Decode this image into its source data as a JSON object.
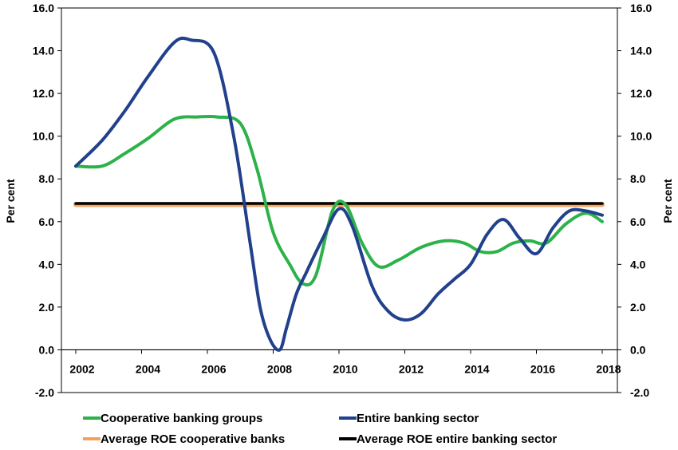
{
  "chart_data": {
    "type": "line",
    "ylabel_left": "Per cent",
    "ylabel_right": "Per cent",
    "ylim": [
      -2,
      16
    ],
    "xlim": [
      2002,
      2018
    ],
    "yticks": [
      "-2.0",
      "0.0",
      "2.0",
      "4.0",
      "6.0",
      "8.0",
      "10.0",
      "12.0",
      "14.0",
      "16.0"
    ],
    "xticks": [
      "2002",
      "2004",
      "2006",
      "2008",
      "2010",
      "2012",
      "2014",
      "2016",
      "2018"
    ],
    "grid": false,
    "legend_position": "bottom",
    "series": [
      {
        "name": "Cooperative banking groups",
        "color": "#2db24a",
        "x": [
          2002,
          2002.8,
          2003.5,
          2004.2,
          2005,
          2005.7,
          2006.3,
          2007,
          2007.5,
          2008,
          2008.5,
          2008.9,
          2009.3,
          2009.8,
          2010.2,
          2010.7,
          2011.2,
          2011.8,
          2012.5,
          2013.2,
          2013.8,
          2014.3,
          2014.8,
          2015.3,
          2015.8,
          2016.3,
          2016.9,
          2017.5,
          2018
        ],
        "y": [
          8.6,
          8.6,
          9.2,
          9.9,
          10.8,
          10.9,
          10.9,
          10.6,
          8.5,
          5.5,
          4.0,
          3.1,
          3.5,
          6.5,
          6.8,
          5.0,
          3.9,
          4.2,
          4.8,
          5.1,
          5.0,
          4.6,
          4.6,
          5.0,
          5.1,
          5.0,
          5.9,
          6.4,
          6.0
        ]
      },
      {
        "name": "Entire banking sector",
        "color": "#22418c",
        "x": [
          2002,
          2002.8,
          2003.5,
          2004.2,
          2005,
          2005.5,
          2006.2,
          2006.8,
          2007.3,
          2007.6,
          2007.9,
          2008.2,
          2008.4,
          2008.7,
          2009,
          2009.5,
          2010,
          2010.4,
          2011,
          2011.5,
          2012,
          2012.5,
          2013,
          2013.5,
          2014,
          2014.5,
          2015,
          2015.5,
          2016,
          2016.5,
          2017,
          2017.5,
          2018
        ],
        "y": [
          8.6,
          9.8,
          11.2,
          12.8,
          14.4,
          14.5,
          13.9,
          10.0,
          5.0,
          2.0,
          0.5,
          0.0,
          1.0,
          2.6,
          3.6,
          5.2,
          6.6,
          5.8,
          3.0,
          1.8,
          1.4,
          1.7,
          2.6,
          3.3,
          4.0,
          5.4,
          6.1,
          5.2,
          4.5,
          5.7,
          6.5,
          6.5,
          6.3
        ]
      },
      {
        "name": "Average ROE cooperative banks",
        "color": "#f6a15b",
        "x": [
          2002,
          2018
        ],
        "y": [
          6.8,
          6.8
        ]
      },
      {
        "name": "Average ROE entire banking sector",
        "color": "#000000",
        "x": [
          2002,
          2018
        ],
        "y": [
          6.85,
          6.85
        ]
      }
    ]
  }
}
